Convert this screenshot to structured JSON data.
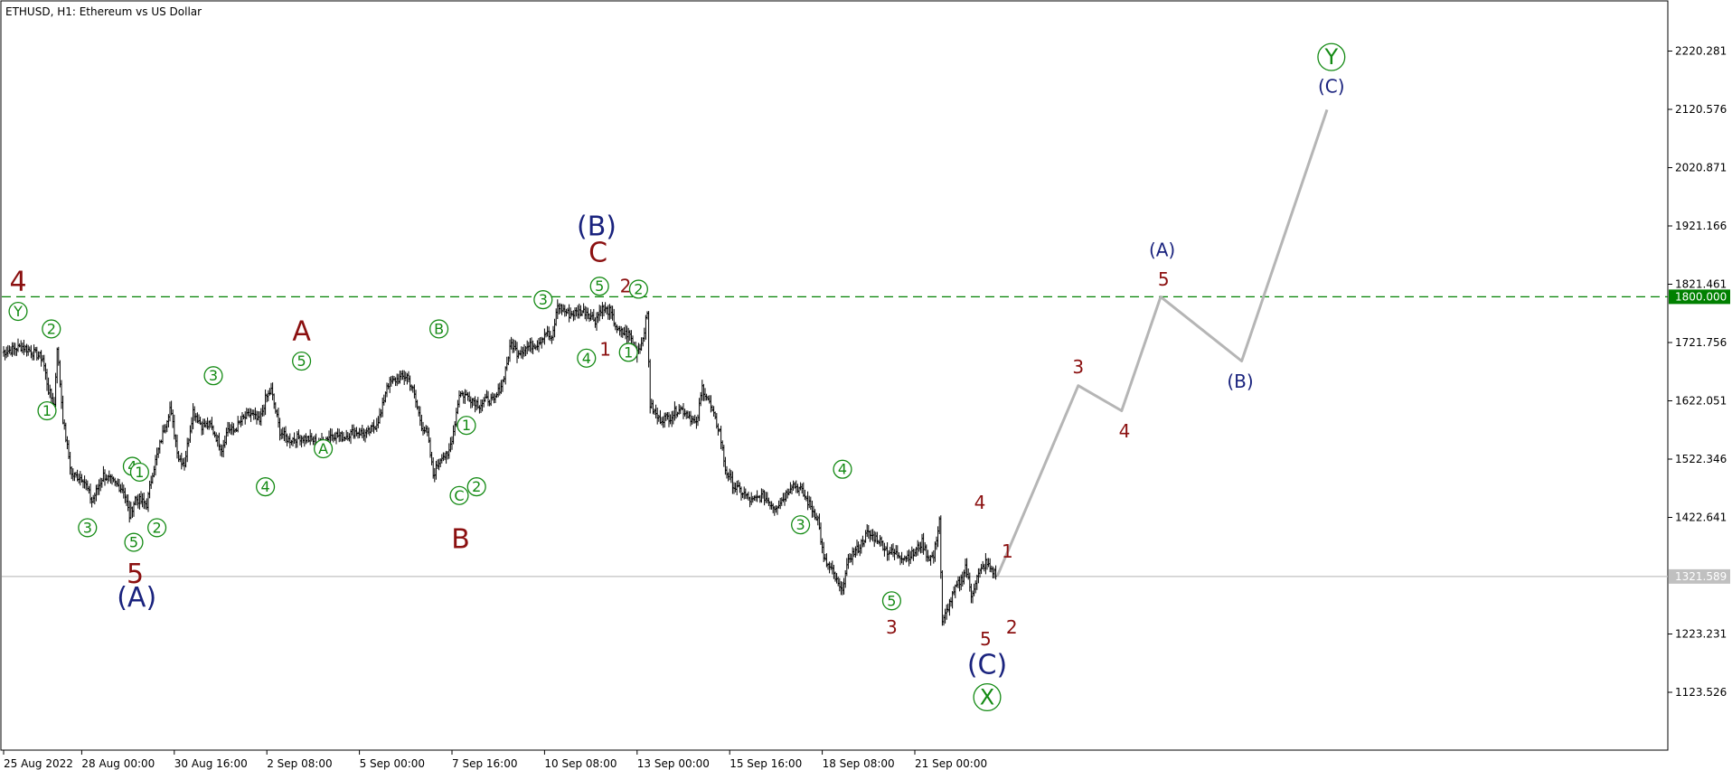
{
  "chart_data": {
    "type": "ohlc",
    "title": "ETHUSD, H1:  Ethereum vs US Dollar",
    "ylim": [
      1040,
      2310
    ],
    "y_ticks": [
      {
        "label": "2220.281",
        "value": 2220.281
      },
      {
        "label": "2120.576",
        "value": 2120.576
      },
      {
        "label": "2020.871",
        "value": 2020.871
      },
      {
        "label": "1921.166",
        "value": 1921.166
      },
      {
        "label": "1821.461",
        "value": 1821.461
      },
      {
        "label": "1721.756",
        "value": 1721.756
      },
      {
        "label": "1622.051",
        "value": 1622.051
      },
      {
        "label": "1522.346",
        "value": 1522.346
      },
      {
        "label": "1422.641",
        "value": 1422.641
      },
      {
        "label": "1223.231",
        "value": 1223.231
      },
      {
        "label": "1123.526",
        "value": 1123.526
      }
    ],
    "x_ticks": [
      {
        "label": "25 Aug 2022",
        "i": 0
      },
      {
        "label": "28 Aug 00:00",
        "i": 54
      },
      {
        "label": "30 Aug 16:00",
        "i": 118
      },
      {
        "label": "2 Sep 08:00",
        "i": 182
      },
      {
        "label": "5 Sep 00:00",
        "i": 246
      },
      {
        "label": "7 Sep 16:00",
        "i": 310
      },
      {
        "label": "10 Sep 08:00",
        "i": 374
      },
      {
        "label": "13 Sep 00:00",
        "i": 438
      },
      {
        "label": "15 Sep 16:00",
        "i": 502
      },
      {
        "label": "18 Sep 08:00",
        "i": 566
      },
      {
        "label": "21 Sep 00:00",
        "i": 630
      }
    ],
    "n_bars": 687,
    "anchors": [
      [
        0,
        1705
      ],
      [
        14,
        1715
      ],
      [
        28,
        1695
      ],
      [
        32,
        1640
      ],
      [
        36,
        1615
      ],
      [
        38,
        1715
      ],
      [
        42,
        1590
      ],
      [
        48,
        1495
      ],
      [
        56,
        1490
      ],
      [
        62,
        1450
      ],
      [
        70,
        1495
      ],
      [
        78,
        1480
      ],
      [
        84,
        1470
      ],
      [
        88,
        1425
      ],
      [
        92,
        1455
      ],
      [
        100,
        1445
      ],
      [
        104,
        1500
      ],
      [
        112,
        1575
      ],
      [
        116,
        1610
      ],
      [
        122,
        1525
      ],
      [
        126,
        1515
      ],
      [
        132,
        1605
      ],
      [
        138,
        1580
      ],
      [
        144,
        1580
      ],
      [
        152,
        1540
      ],
      [
        156,
        1575
      ],
      [
        160,
        1570
      ],
      [
        166,
        1590
      ],
      [
        172,
        1600
      ],
      [
        178,
        1585
      ],
      [
        182,
        1625
      ],
      [
        186,
        1640
      ],
      [
        192,
        1570
      ],
      [
        198,
        1555
      ],
      [
        206,
        1560
      ],
      [
        214,
        1555
      ],
      [
        220,
        1550
      ],
      [
        228,
        1565
      ],
      [
        236,
        1560
      ],
      [
        244,
        1570
      ],
      [
        252,
        1565
      ],
      [
        258,
        1580
      ],
      [
        262,
        1600
      ],
      [
        266,
        1650
      ],
      [
        274,
        1660
      ],
      [
        280,
        1665
      ],
      [
        284,
        1640
      ],
      [
        290,
        1580
      ],
      [
        294,
        1565
      ],
      [
        298,
        1495
      ],
      [
        304,
        1530
      ],
      [
        308,
        1525
      ],
      [
        312,
        1570
      ],
      [
        316,
        1635
      ],
      [
        322,
        1630
      ],
      [
        330,
        1615
      ],
      [
        336,
        1625
      ],
      [
        340,
        1620
      ],
      [
        346,
        1655
      ],
      [
        352,
        1720
      ],
      [
        356,
        1705
      ],
      [
        364,
        1715
      ],
      [
        370,
        1720
      ],
      [
        376,
        1740
      ],
      [
        380,
        1725
      ],
      [
        384,
        1785
      ],
      [
        392,
        1770
      ],
      [
        400,
        1775
      ],
      [
        404,
        1775
      ],
      [
        410,
        1760
      ],
      [
        414,
        1780
      ],
      [
        420,
        1775
      ],
      [
        426,
        1740
      ],
      [
        434,
        1735
      ],
      [
        438,
        1705
      ],
      [
        442,
        1720
      ],
      [
        446,
        1770
      ],
      [
        448,
        1615
      ],
      [
        454,
        1590
      ],
      [
        462,
        1595
      ],
      [
        468,
        1610
      ],
      [
        474,
        1600
      ],
      [
        480,
        1580
      ],
      [
        484,
        1645
      ],
      [
        488,
        1625
      ],
      [
        492,
        1595
      ],
      [
        496,
        1570
      ],
      [
        500,
        1505
      ],
      [
        506,
        1475
      ],
      [
        512,
        1465
      ],
      [
        518,
        1450
      ],
      [
        526,
        1460
      ],
      [
        534,
        1440
      ],
      [
        540,
        1455
      ],
      [
        546,
        1480
      ],
      [
        552,
        1470
      ],
      [
        558,
        1445
      ],
      [
        564,
        1420
      ],
      [
        568,
        1350
      ],
      [
        574,
        1330
      ],
      [
        580,
        1295
      ],
      [
        586,
        1355
      ],
      [
        592,
        1370
      ],
      [
        598,
        1395
      ],
      [
        606,
        1385
      ],
      [
        612,
        1365
      ],
      [
        618,
        1360
      ],
      [
        624,
        1355
      ],
      [
        630,
        1360
      ],
      [
        636,
        1380
      ],
      [
        640,
        1355
      ],
      [
        644,
        1355
      ],
      [
        648,
        1420
      ],
      [
        650,
        1240
      ],
      [
        654,
        1270
      ],
      [
        660,
        1305
      ],
      [
        664,
        1320
      ],
      [
        666,
        1340
      ],
      [
        670,
        1290
      ],
      [
        674,
        1320
      ],
      [
        680,
        1345
      ],
      [
        687,
        1325
      ]
    ],
    "projection": [
      {
        "i": 687,
        "y": 1322
      },
      {
        "i": 743,
        "y": 1648
      },
      {
        "i": 773,
        "y": 1605
      },
      {
        "i": 800,
        "y": 1800
      },
      {
        "i": 856,
        "y": 1690
      },
      {
        "i": 915,
        "y": 2120
      }
    ],
    "horizontal_lines": [
      {
        "value": 1800,
        "label": "1800.000",
        "color": "#008000",
        "style": "dashed"
      },
      {
        "value": 1321.589,
        "label": "1321.589",
        "color": "#c0c0c0",
        "style": "solid"
      }
    ],
    "colors": {
      "bars": "#000000",
      "projection": "#b5b5b5",
      "green": "#138a13",
      "maroon": "#8b1010",
      "navy": "#1a237e",
      "axis": "#000000"
    },
    "wave_labels": [
      {
        "text": "4",
        "i": 10,
        "y": 1825,
        "color": "maroon",
        "size": 30,
        "circle": false
      },
      {
        "text": "Y",
        "i": 10,
        "y": 1775,
        "color": "green",
        "size": 16,
        "circle": true
      },
      {
        "text": "2",
        "i": 33,
        "y": 1745,
        "color": "green",
        "size": 16,
        "circle": true
      },
      {
        "text": "1",
        "i": 30,
        "y": 1605,
        "color": "green",
        "size": 16,
        "circle": true
      },
      {
        "text": "3",
        "i": 58,
        "y": 1405,
        "color": "green",
        "size": 16,
        "circle": true
      },
      {
        "text": "4",
        "i": 89,
        "y": 1510,
        "color": "green",
        "size": 16,
        "circle": true
      },
      {
        "text": "1",
        "i": 94,
        "y": 1500,
        "color": "green",
        "size": 16,
        "circle": true
      },
      {
        "text": "5",
        "i": 90,
        "y": 1380,
        "color": "green",
        "size": 16,
        "circle": true
      },
      {
        "text": "2",
        "i": 106,
        "y": 1405,
        "color": "green",
        "size": 16,
        "circle": true
      },
      {
        "text": "5",
        "i": 91,
        "y": 1325,
        "color": "maroon",
        "size": 30,
        "circle": false
      },
      {
        "text": "(A)",
        "i": 92,
        "y": 1285,
        "color": "navy",
        "size": 30,
        "circle": false
      },
      {
        "text": "3",
        "i": 145,
        "y": 1665,
        "color": "green",
        "size": 16,
        "circle": true
      },
      {
        "text": "4",
        "i": 181,
        "y": 1475,
        "color": "green",
        "size": 16,
        "circle": true
      },
      {
        "text": "A",
        "i": 206,
        "y": 1740,
        "color": "maroon",
        "size": 30,
        "circle": false
      },
      {
        "text": "5",
        "i": 206,
        "y": 1690,
        "color": "green",
        "size": 16,
        "circle": true
      },
      {
        "text": "A",
        "i": 221,
        "y": 1540,
        "color": "green",
        "size": 16,
        "circle": true
      },
      {
        "text": "B",
        "i": 301,
        "y": 1745,
        "color": "green",
        "size": 16,
        "circle": true
      },
      {
        "text": "1",
        "i": 320,
        "y": 1580,
        "color": "green",
        "size": 16,
        "circle": true
      },
      {
        "text": "C",
        "i": 315,
        "y": 1460,
        "color": "green",
        "size": 16,
        "circle": true
      },
      {
        "text": "2",
        "i": 327,
        "y": 1475,
        "color": "green",
        "size": 16,
        "circle": true
      },
      {
        "text": "B",
        "i": 316,
        "y": 1385,
        "color": "maroon",
        "size": 30,
        "circle": false
      },
      {
        "text": "3",
        "i": 373,
        "y": 1795,
        "color": "green",
        "size": 16,
        "circle": true
      },
      {
        "text": "4",
        "i": 403,
        "y": 1695,
        "color": "green",
        "size": 16,
        "circle": true
      },
      {
        "text": "1",
        "i": 416,
        "y": 1710,
        "color": "maroon",
        "size": 20,
        "circle": false
      },
      {
        "text": "(B)",
        "i": 410,
        "y": 1920,
        "color": "navy",
        "size": 30,
        "circle": false
      },
      {
        "text": "C",
        "i": 411,
        "y": 1875,
        "color": "maroon",
        "size": 30,
        "circle": false
      },
      {
        "text": "5",
        "i": 412,
        "y": 1818,
        "color": "green",
        "size": 16,
        "circle": true
      },
      {
        "text": "2",
        "i": 430,
        "y": 1818,
        "color": "maroon",
        "size": 20,
        "circle": false
      },
      {
        "text": "2",
        "i": 439,
        "y": 1813,
        "color": "green",
        "size": 16,
        "circle": true
      },
      {
        "text": "1",
        "i": 432,
        "y": 1705,
        "color": "green",
        "size": 16,
        "circle": true
      },
      {
        "text": "4",
        "i": 580,
        "y": 1505,
        "color": "green",
        "size": 16,
        "circle": true
      },
      {
        "text": "3",
        "i": 551,
        "y": 1410,
        "color": "green",
        "size": 16,
        "circle": true
      },
      {
        "text": "5",
        "i": 614,
        "y": 1280,
        "color": "green",
        "size": 16,
        "circle": true
      },
      {
        "text": "3",
        "i": 614,
        "y": 1235,
        "color": "maroon",
        "size": 20,
        "circle": false
      },
      {
        "text": "4",
        "i": 675,
        "y": 1448,
        "color": "maroon",
        "size": 20,
        "circle": false
      },
      {
        "text": "1",
        "i": 694,
        "y": 1365,
        "color": "maroon",
        "size": 20,
        "circle": false
      },
      {
        "text": "2",
        "i": 697,
        "y": 1235,
        "color": "maroon",
        "size": 20,
        "circle": false
      },
      {
        "text": "5",
        "i": 679,
        "y": 1215,
        "color": "maroon",
        "size": 20,
        "circle": false
      },
      {
        "text": "(C)",
        "i": 680,
        "y": 1170,
        "color": "navy",
        "size": 30,
        "circle": false
      },
      {
        "text": "X",
        "i": 680,
        "y": 1115,
        "color": "green",
        "size": 24,
        "circle": true
      },
      {
        "text": "3",
        "i": 743,
        "y": 1680,
        "color": "maroon",
        "size": 20,
        "circle": false
      },
      {
        "text": "4",
        "i": 775,
        "y": 1570,
        "color": "maroon",
        "size": 20,
        "circle": false
      },
      {
        "text": "5",
        "i": 802,
        "y": 1830,
        "color": "maroon",
        "size": 20,
        "circle": false
      },
      {
        "text": "(A)",
        "i": 801,
        "y": 1880,
        "color": "navy",
        "size": 20,
        "circle": false
      },
      {
        "text": "(B)",
        "i": 855,
        "y": 1655,
        "color": "navy",
        "size": 20,
        "circle": false
      },
      {
        "text": "(C)",
        "i": 918,
        "y": 2160,
        "color": "navy",
        "size": 20,
        "circle": false
      },
      {
        "text": "Y",
        "i": 918,
        "y": 2210,
        "color": "green",
        "size": 24,
        "circle": true
      }
    ]
  }
}
